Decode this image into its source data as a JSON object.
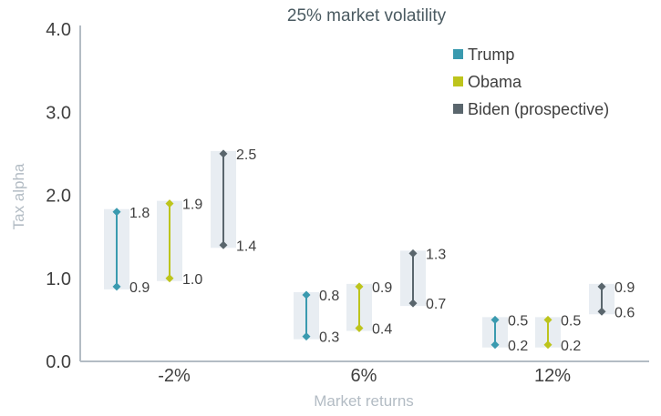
{
  "chart_data": {
    "type": "range",
    "title": "25% market volatility",
    "xlabel": "Market returns",
    "ylabel": "Tax alpha",
    "categories": [
      "-2%",
      "6%",
      "12%"
    ],
    "ylim": [
      0,
      4
    ],
    "yticks": [
      "0.0",
      "1.0",
      "2.0",
      "3.0",
      "4.0"
    ],
    "grid": false,
    "legend_position": "top-right",
    "series": [
      {
        "name": "Trump",
        "color": "#3a9aaf",
        "ranges": [
          {
            "low": 0.9,
            "high": 1.8,
            "low_label": "0.9",
            "high_label": "1.8"
          },
          {
            "low": 0.3,
            "high": 0.8,
            "low_label": "0.3",
            "high_label": "0.8"
          },
          {
            "low": 0.2,
            "high": 0.5,
            "low_label": "0.2",
            "high_label": "0.5"
          }
        ]
      },
      {
        "name": "Obama",
        "color": "#bdc41c",
        "ranges": [
          {
            "low": 1.0,
            "high": 1.9,
            "low_label": "1.0",
            "high_label": "1.9"
          },
          {
            "low": 0.4,
            "high": 0.9,
            "low_label": "0.4",
            "high_label": "0.9"
          },
          {
            "low": 0.2,
            "high": 0.5,
            "low_label": "0.2",
            "high_label": "0.5"
          }
        ]
      },
      {
        "name": "Biden (prospective)",
        "color": "#5a666d",
        "ranges": [
          {
            "low": 1.4,
            "high": 2.5,
            "low_label": "1.4",
            "high_label": "2.5"
          },
          {
            "low": 0.7,
            "high": 1.3,
            "low_label": "0.7",
            "high_label": "1.3"
          },
          {
            "low": 0.6,
            "high": 0.9,
            "low_label": "0.6",
            "high_label": "0.9"
          }
        ]
      }
    ],
    "band_color": "#e8edf2",
    "axis_color": "#b3bcc4"
  }
}
